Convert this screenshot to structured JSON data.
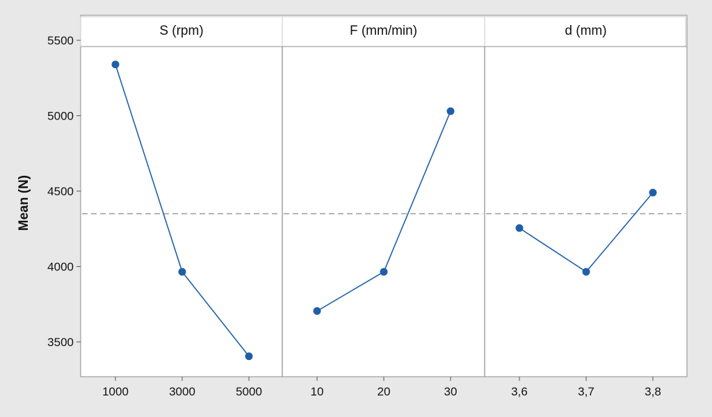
{
  "chart_data": {
    "type": "line",
    "ylabel": "Mean (N)",
    "ylim": [
      3300,
      5600
    ],
    "yticks": [
      3500,
      4000,
      4500,
      5000,
      5500
    ],
    "ytick_labels": [
      "3500",
      "4000",
      "4500",
      "5000",
      "5500"
    ],
    "reference_line": 4350,
    "grid": false,
    "colors": {
      "series": "#1f5fa8",
      "reference": "#9a9a9a",
      "panel_bg": "#ffffff",
      "frame_bg": "#e8e8e8"
    },
    "panels": [
      {
        "title": "S (rpm)",
        "categories": [
          "1000",
          "3000",
          "5000"
        ],
        "values": [
          5340,
          3965,
          3405
        ]
      },
      {
        "title": "F (mm/min)",
        "categories": [
          "10",
          "20",
          "30"
        ],
        "values": [
          3705,
          3965,
          5030
        ]
      },
      {
        "title": "d (mm)",
        "categories": [
          "3,6",
          "3,7",
          "3,8"
        ],
        "values": [
          4255,
          3965,
          4490
        ]
      }
    ]
  }
}
